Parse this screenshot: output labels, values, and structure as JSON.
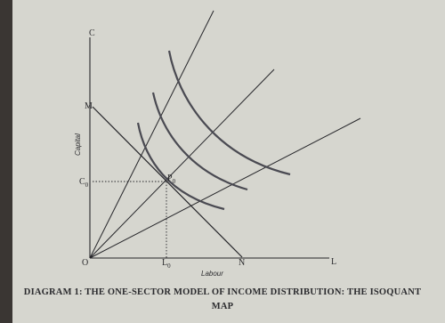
{
  "diagram": {
    "axis_labels": {
      "y_axis_end": "C",
      "x_axis_end": "L",
      "y_title": "Capital",
      "x_title": "Labour"
    },
    "points": {
      "origin": "O",
      "m": "M",
      "n": "N",
      "c0": {
        "label": "C",
        "subscript": "0"
      },
      "p0": {
        "label": "P",
        "subscript": "0"
      },
      "l0": {
        "label": "L",
        "subscript": "0"
      }
    },
    "caption": [
      "DIAGRAM 1: THE ONE-SECTOR MODEL OF INCOME DISTRIBUTION: THE ISOQUANT",
      "MAP"
    ]
  }
}
